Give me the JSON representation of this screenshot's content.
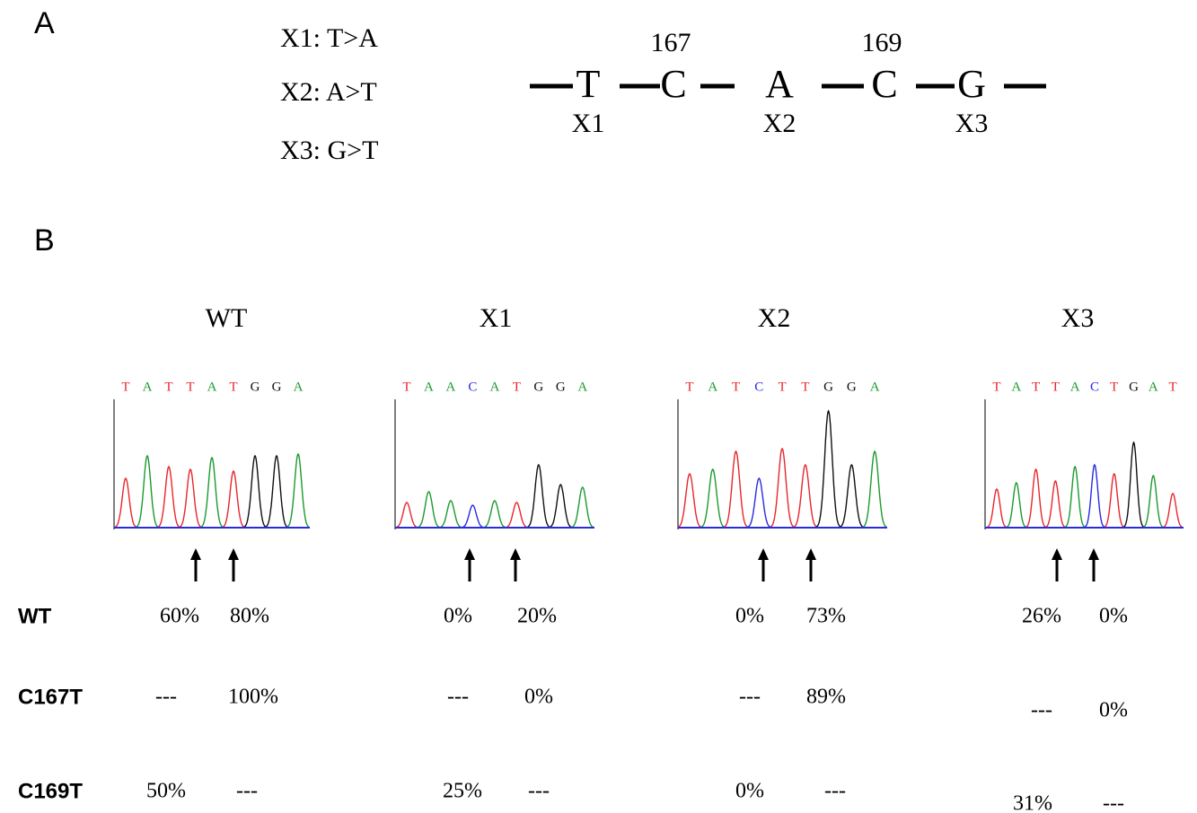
{
  "panel_a": {
    "label": "A",
    "mutations": [
      "X1: T>A",
      "X2: A>T",
      "X3: G>T"
    ],
    "sequence": [
      {
        "base": "T",
        "sub": "X1"
      },
      {
        "base": "C",
        "pos": "167"
      },
      {
        "base": "A",
        "sub": "X2"
      },
      {
        "base": "C",
        "pos": "169"
      },
      {
        "base": "G",
        "sub": "X3"
      }
    ]
  },
  "panel_b": {
    "label": "B",
    "row_labels": [
      "WT",
      "C167T",
      "C169T"
    ],
    "base_colors": {
      "T": "#e8262b",
      "A": "#1b9a2e",
      "C": "#2a2ae0",
      "G": "#111111"
    },
    "samples": [
      {
        "name": "WT",
        "bases": [
          "T",
          "A",
          "T",
          "T",
          "A",
          "T",
          "G",
          "G",
          "A"
        ],
        "cells": [
          [
            "60%",
            "80%"
          ],
          [
            "---",
            "100%"
          ],
          [
            "50%",
            "---"
          ]
        ]
      },
      {
        "name": "X1",
        "bases": [
          "T",
          "A",
          "A",
          "C",
          "A",
          "T",
          "G",
          "G",
          "A"
        ],
        "cells": [
          [
            "0%",
            "20%"
          ],
          [
            "---",
            "0%"
          ],
          [
            "25%",
            "---"
          ]
        ]
      },
      {
        "name": "X2",
        "bases": [
          "T",
          "A",
          "T",
          "C",
          "T",
          "T",
          "G",
          "G",
          "A"
        ],
        "cells": [
          [
            "0%",
            "73%"
          ],
          [
            "---",
            "89%"
          ],
          [
            "0%",
            "---"
          ]
        ]
      },
      {
        "name": "X3",
        "bases": [
          "T",
          "A",
          "T",
          "T",
          "A",
          "C",
          "T",
          "G",
          "A",
          "T"
        ],
        "cells": [
          [
            "26%",
            "0%"
          ],
          [
            "---",
            "0%"
          ],
          [
            "31%",
            "---"
          ]
        ]
      }
    ]
  }
}
